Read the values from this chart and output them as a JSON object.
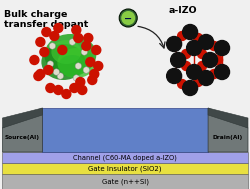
{
  "bg_color": "#f0f0f0",
  "title_text": "Bulk charge\ntransfer dopant",
  "title_fontsize": 6.8,
  "title_fontweight": "bold",
  "aizo_label": "a-IZO",
  "source_label": "Source(Al)",
  "drain_label": "Drain(Al)",
  "layer_channel_color": "#a0a0e8",
  "layer_channel_label": "Channel (C60-MA doped a-IZO)",
  "layer_insulator_color": "#e8e040",
  "layer_insulator_label": "Gate Insulator (SIO2)",
  "layer_gate_color": "#b0b0b0",
  "layer_gate_label": "Gate (n++SI)",
  "platform_color": "#6080c8",
  "electrode_color": "#707878",
  "electrode_dark": "#404848",
  "arrow_color": "#222222",
  "electron_bg": "#336633",
  "electron_fg": "#88cc44",
  "fullerene_green_dark": "#1a8a1a",
  "fullerene_green_light": "#44cc22",
  "red_atom": "#cc1100",
  "white_atom": "#ddddcc",
  "black_atom": "#111111"
}
